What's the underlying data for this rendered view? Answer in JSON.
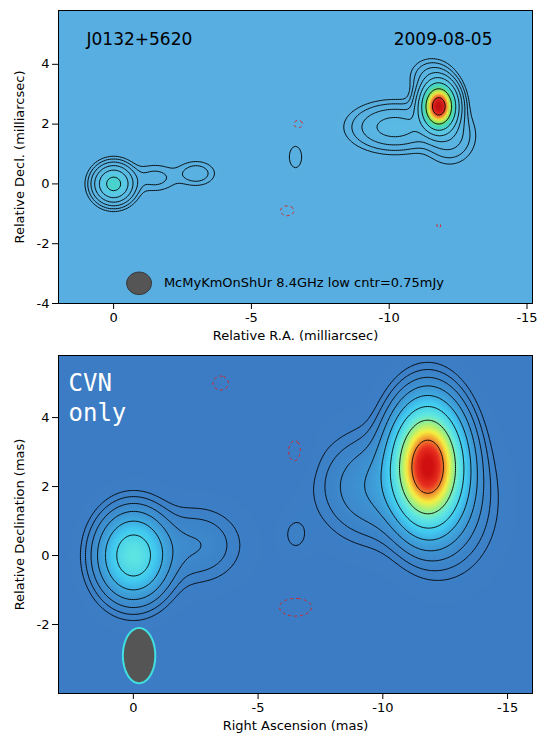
{
  "chart_data": [
    {
      "type": "contour",
      "x_label": "Relative R.A. (milliarcsec)",
      "y_label": "Relative Decl. (milliarcsec)",
      "xlim": [
        2,
        -15.2
      ],
      "ylim": [
        -4,
        5.8
      ],
      "xticks": [
        0,
        -5,
        -10,
        -15
      ],
      "yticks": [
        -4,
        -2,
        0,
        2,
        4
      ],
      "annotations": [
        "J0132+5620",
        "2009-08-05"
      ],
      "beam_label": "McMyKmOnShUr 8.4GHz low cntr=0.75mJy",
      "beam": {
        "fwhm_x": 0.9,
        "fwhm_y": 0.75
      },
      "contour_levels": [
        -0.75,
        0.75,
        1.5,
        3,
        6,
        12,
        24,
        48,
        96
      ],
      "components": [
        {
          "x": 0,
          "y": 0,
          "peak": 30,
          "fwhm_x": 0.9,
          "fwhm_y": 0.8
        },
        {
          "x": -1.5,
          "y": 0.2,
          "peak": 2,
          "fwhm_x": 1.2,
          "fwhm_y": 0.7
        },
        {
          "x": -3.0,
          "y": 0.35,
          "peak": 2.5,
          "fwhm_x": 1.0,
          "fwhm_y": 0.6
        },
        {
          "x": -6.6,
          "y": 0.9,
          "peak": 1.3,
          "fwhm_x": 0.5,
          "fwhm_y": 0.8
        },
        {
          "x": -11.8,
          "y": 2.6,
          "peak": 120,
          "fwhm_x": 0.8,
          "fwhm_y": 1.0
        },
        {
          "x": -10.2,
          "y": 1.9,
          "peak": 8,
          "fwhm_x": 2.0,
          "fwhm_y": 1.0
        },
        {
          "x": -12.2,
          "y": 1.6,
          "peak": 4,
          "fwhm_x": 1.2,
          "fwhm_y": 1.2
        },
        {
          "x": -11.5,
          "y": 3.6,
          "peak": 3,
          "fwhm_x": 1.0,
          "fwhm_y": 0.8
        },
        {
          "x": -6.3,
          "y": -0.9,
          "peak": -1.2,
          "fwhm_x": 0.6,
          "fwhm_y": 0.4
        },
        {
          "x": -6.7,
          "y": 2.0,
          "peak": -1.0,
          "fwhm_x": 0.5,
          "fwhm_y": 0.4
        },
        {
          "x": -11.8,
          "y": -1.4,
          "peak": -0.9,
          "fwhm_x": 0.3,
          "fwhm_y": 0.3
        }
      ]
    },
    {
      "type": "contour",
      "x_label": "Right Ascension (mas)",
      "y_label": "Relative Declination (mas)",
      "xlim": [
        3,
        -16
      ],
      "ylim": [
        -4,
        5.8
      ],
      "xticks": [
        0,
        -5,
        -10,
        -15
      ],
      "yticks": [
        -2,
        0,
        2,
        4
      ],
      "label_lines": [
        "CVN",
        "only"
      ],
      "beam": {
        "fwhm_x": 1.3,
        "fwhm_y": 1.6
      },
      "contour_levels": [
        -0.75,
        0.75,
        1.5,
        3,
        6,
        12,
        24,
        48,
        96
      ],
      "components": [
        {
          "x": 0,
          "y": 0,
          "peak": 35,
          "fwhm_x": 1.8,
          "fwhm_y": 1.6
        },
        {
          "x": -2.5,
          "y": 0.3,
          "peak": 3,
          "fwhm_x": 2.5,
          "fwhm_y": 1.5
        },
        {
          "x": -6.5,
          "y": 0.6,
          "peak": 1.0,
          "fwhm_x": 0.9,
          "fwhm_y": 0.9
        },
        {
          "x": -11.8,
          "y": 2.6,
          "peak": 130,
          "fwhm_x": 1.8,
          "fwhm_y": 2.2
        },
        {
          "x": -9.8,
          "y": 2.0,
          "peak": 6,
          "fwhm_x": 3.0,
          "fwhm_y": 2.0
        },
        {
          "x": -12.5,
          "y": 1.5,
          "peak": 5,
          "fwhm_x": 2.5,
          "fwhm_y": 2.5
        },
        {
          "x": -6.5,
          "y": 3.0,
          "peak": -1.0,
          "fwhm_x": 1.0,
          "fwhm_y": 1.2
        },
        {
          "x": -6.5,
          "y": -1.5,
          "peak": -1.0,
          "fwhm_x": 2.0,
          "fwhm_y": 0.8
        },
        {
          "x": -3.5,
          "y": 5.0,
          "peak": -0.9,
          "fwhm_x": 1.2,
          "fwhm_y": 0.8
        }
      ]
    }
  ]
}
